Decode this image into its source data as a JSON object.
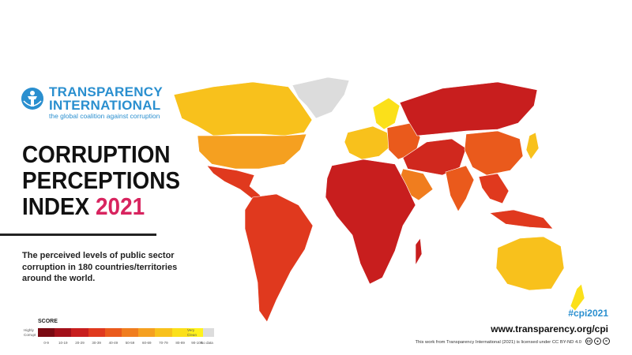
{
  "logo": {
    "name_line1": "TRANSPARENCY",
    "name_line2": "INTERNATIONAL",
    "tagline": "the global coalition against corruption",
    "color": "#2a8fcf"
  },
  "title": {
    "line1": "CORRUPTION",
    "line2": "PERCEPTIONS",
    "line3": "INDEX",
    "year": "2021",
    "year_color": "#d8245f"
  },
  "description": "The perceived levels of public sector corruption in 180 countries/territories around the world.",
  "legend": {
    "title": "SCORE",
    "low_label": "Highly Corrupt",
    "high_label": "Very Clean",
    "bins": [
      {
        "label": "0-9",
        "color": "#7a0a12"
      },
      {
        "label": "10-19",
        "color": "#a3101a"
      },
      {
        "label": "20-29",
        "color": "#c81e1e"
      },
      {
        "label": "30-39",
        "color": "#e0391e"
      },
      {
        "label": "40-49",
        "color": "#ea5a1c"
      },
      {
        "label": "50-59",
        "color": "#f07d1e"
      },
      {
        "label": "60-69",
        "color": "#f5a020"
      },
      {
        "label": "70-79",
        "color": "#f8c11c"
      },
      {
        "label": "80-89",
        "color": "#fbe01a"
      },
      {
        "label": "90-100",
        "color": "#fff21c"
      }
    ],
    "no_data_label": "No data",
    "no_data_color": "#dcdcdc"
  },
  "footer": {
    "hashtag": "#cpi2021",
    "website": "www.transparency.org/cpi",
    "license": "This work from Transparency International (2021) is licensed under CC BY-ND 4.0",
    "cc_icons": [
      "cc",
      "by",
      "nd"
    ]
  },
  "map_regions": [
    {
      "name": "Greenland",
      "color": "#dcdcdc"
    },
    {
      "name": "North America",
      "color": "#f5a020"
    },
    {
      "name": "Canada",
      "color": "#f8c11c"
    },
    {
      "name": "Central America",
      "color": "#e0391e"
    },
    {
      "name": "South America",
      "color": "#e0391e"
    },
    {
      "name": "Europe West",
      "color": "#f8c11c"
    },
    {
      "name": "Scandinavia",
      "color": "#fbe01a"
    },
    {
      "name": "Europe East",
      "color": "#ea5a1c"
    },
    {
      "name": "Russia",
      "color": "#c81e1e"
    },
    {
      "name": "Africa",
      "color": "#c81e1e"
    },
    {
      "name": "Middle East",
      "color": "#d0281e"
    },
    {
      "name": "Arabia",
      "color": "#f07d1e"
    },
    {
      "name": "India",
      "color": "#ea5a1c"
    },
    {
      "name": "China",
      "color": "#ea5a1c"
    },
    {
      "name": "Southeast Asia",
      "color": "#e0391e"
    },
    {
      "name": "Japan",
      "color": "#f8c11c"
    },
    {
      "name": "Australia",
      "color": "#f8c11c"
    },
    {
      "name": "New Zealand",
      "color": "#fbe01a"
    }
  ]
}
